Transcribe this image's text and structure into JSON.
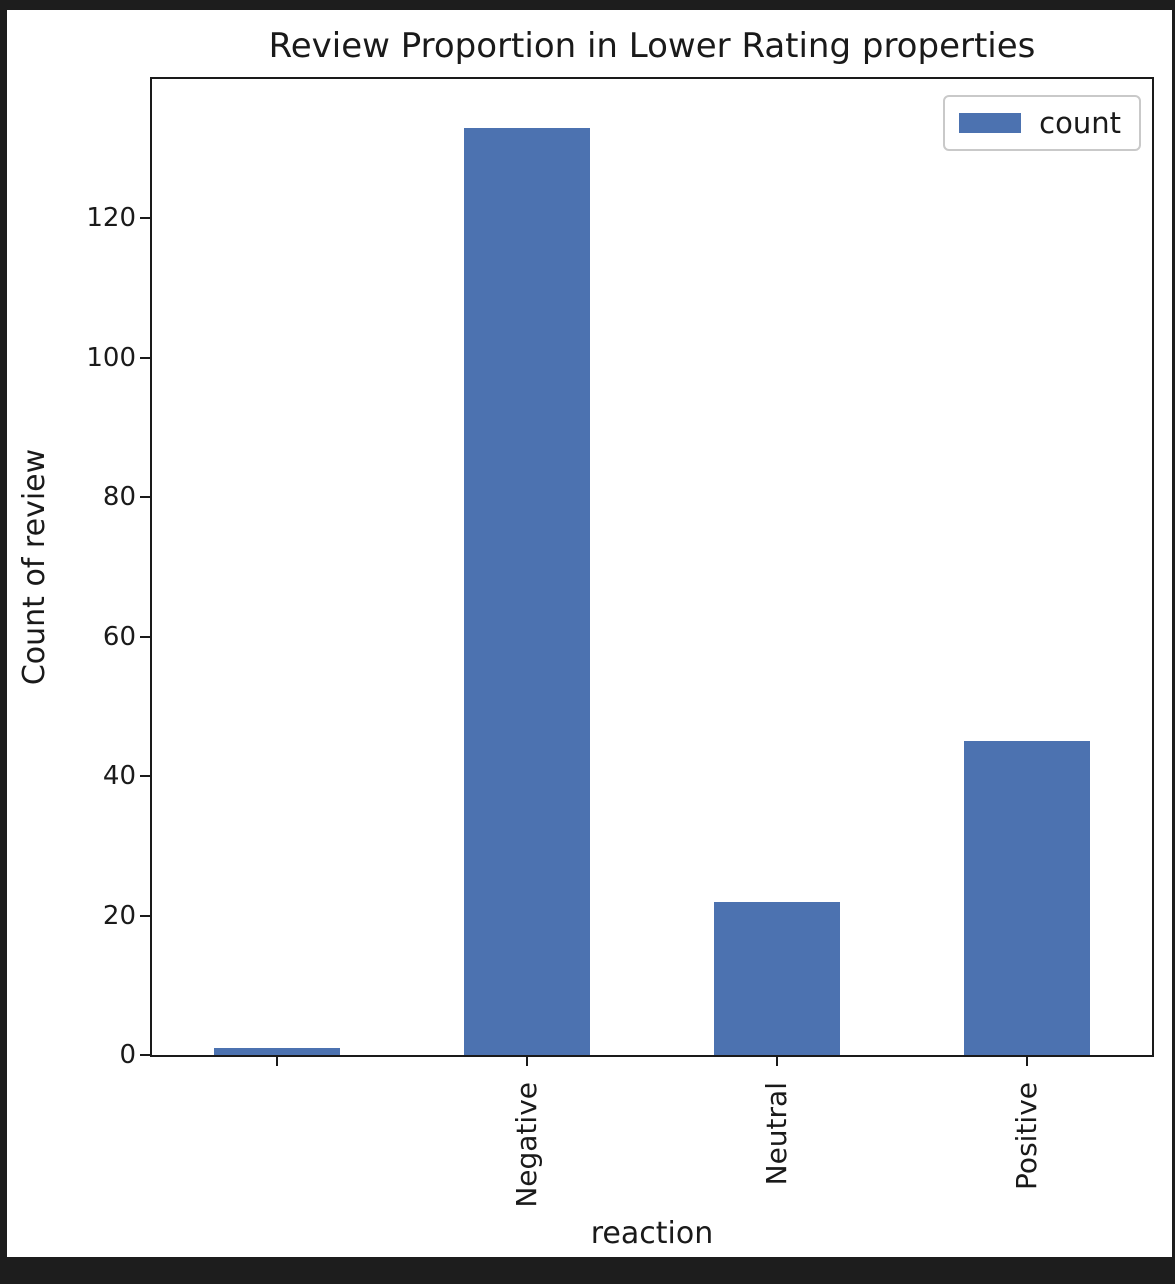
{
  "frame": {
    "background": "#1d1d1d",
    "figure_background": "#ffffff",
    "axis_color": "#1a1a1a",
    "text_color": "#1a1a1a"
  },
  "chart_data": {
    "type": "bar",
    "title": "Review Proportion in Lower Rating properties",
    "xlabel": "reaction",
    "ylabel": "Count of review",
    "categories": [
      "",
      "Negative",
      "Neutral",
      "Positive"
    ],
    "series": [
      {
        "name": "count",
        "values": [
          1,
          133,
          22,
          45
        ]
      }
    ],
    "bar_color": "#4c72b0",
    "ylim": [
      0,
      140
    ],
    "yticks": [
      0,
      20,
      40,
      60,
      80,
      100,
      120
    ],
    "x_tick_rotation": 90,
    "grid": false,
    "legend": {
      "label": "count",
      "position": "upper right"
    }
  }
}
